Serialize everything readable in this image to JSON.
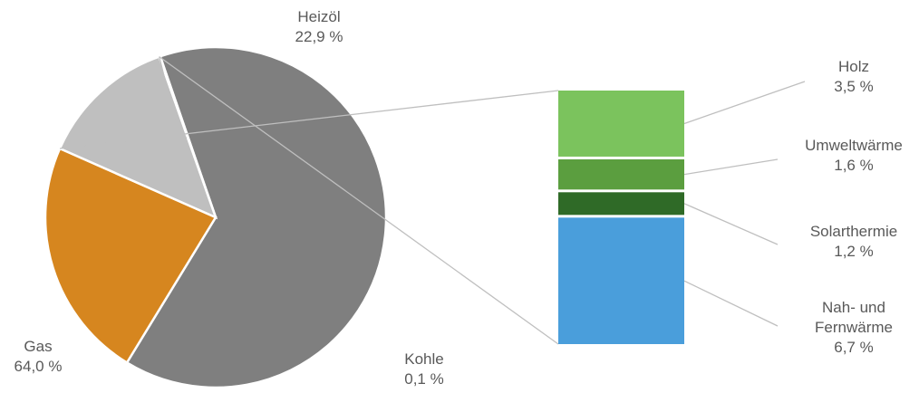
{
  "chart_data": {
    "type": "pie",
    "subtype": "pie-of-pie (stacked bar breakout)",
    "slices": [
      {
        "key": "gas",
        "label": "Gas",
        "value_label": "64,0 %",
        "value": 64.0,
        "color": "#7f7f7f"
      },
      {
        "key": "heizoel",
        "label": "Heizöl",
        "value_label": "22,9 %",
        "value": 22.9,
        "color": "#d6861f"
      },
      {
        "key": "other",
        "label": "",
        "value_label": "",
        "value": 13.0,
        "color": "#bfbfbf"
      },
      {
        "key": "kohle",
        "label": "Kohle",
        "value_label": "0,1 %",
        "value": 0.1,
        "color": "#a6a6a6"
      }
    ],
    "breakout": [
      {
        "key": "holz",
        "label": "Holz",
        "value_label": "3,5 %",
        "value": 3.5,
        "color": "#7bc35d"
      },
      {
        "key": "umwelt",
        "label": "Umweltwärme",
        "value_label": "1,6 %",
        "value": 1.6,
        "color": "#5b9e3f"
      },
      {
        "key": "solar",
        "label": "Solarthermie",
        "value_label": "1,2 %",
        "value": 1.2,
        "color": "#2f6a27"
      },
      {
        "key": "fern",
        "label": "Nah- und\nFernwärme",
        "value_label": "6,7 %",
        "value": 6.7,
        "color": "#4a9edb"
      }
    ],
    "title": "",
    "legend": "none"
  }
}
